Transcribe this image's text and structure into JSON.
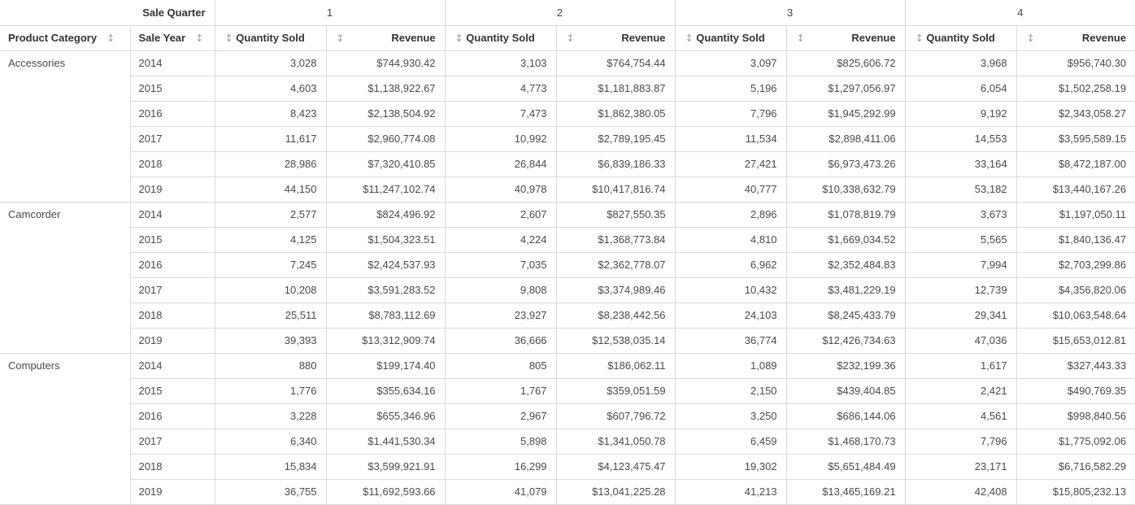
{
  "pivot_table": {
    "corner_label": "Sale Quarter",
    "row_dimension_labels": {
      "category": "Product Category",
      "year": "Sale Year"
    },
    "quarters": [
      "1",
      "2",
      "3",
      "4"
    ],
    "measures": {
      "quantity": "Quantity Sold",
      "revenue": "Revenue"
    },
    "sort_icon_glyph": "↕",
    "groups": [
      {
        "category": "Accessories",
        "rows": [
          {
            "year": "2014",
            "values": [
              "3,028",
              "$744,930.42",
              "3,103",
              "$764,754.44",
              "3,097",
              "$825,606.72",
              "3,968",
              "$956,740.30"
            ]
          },
          {
            "year": "2015",
            "values": [
              "4,603",
              "$1,138,922.67",
              "4,773",
              "$1,181,883.87",
              "5,196",
              "$1,297,056.97",
              "6,054",
              "$1,502,258.19"
            ]
          },
          {
            "year": "2016",
            "values": [
              "8,423",
              "$2,138,504.92",
              "7,473",
              "$1,862,380.05",
              "7,796",
              "$1,945,292.99",
              "9,192",
              "$2,343,058.27"
            ]
          },
          {
            "year": "2017",
            "values": [
              "11,617",
              "$2,960,774.08",
              "10,992",
              "$2,789,195.45",
              "11,534",
              "$2,898,411.06",
              "14,553",
              "$3,595,589.15"
            ]
          },
          {
            "year": "2018",
            "values": [
              "28,986",
              "$7,320,410.85",
              "26,844",
              "$6,839,186.33",
              "27,421",
              "$6,973,473.26",
              "33,164",
              "$8,472,187.00"
            ]
          },
          {
            "year": "2019",
            "values": [
              "44,150",
              "$11,247,102.74",
              "40,978",
              "$10,417,816.74",
              "40,777",
              "$10,338,632.79",
              "53,182",
              "$13,440,167.26"
            ]
          }
        ]
      },
      {
        "category": "Camcorder",
        "rows": [
          {
            "year": "2014",
            "values": [
              "2,577",
              "$824,496.92",
              "2,607",
              "$827,550.35",
              "2,896",
              "$1,078,819.79",
              "3,673",
              "$1,197,050.11"
            ]
          },
          {
            "year": "2015",
            "values": [
              "4,125",
              "$1,504,323.51",
              "4,224",
              "$1,368,773.84",
              "4,810",
              "$1,669,034.52",
              "5,565",
              "$1,840,136.47"
            ]
          },
          {
            "year": "2016",
            "values": [
              "7,245",
              "$2,424,537.93",
              "7,035",
              "$2,362,778.07",
              "6,962",
              "$2,352,484.83",
              "7,994",
              "$2,703,299.86"
            ]
          },
          {
            "year": "2017",
            "values": [
              "10,208",
              "$3,591,283.52",
              "9,808",
              "$3,374,989.46",
              "10,432",
              "$3,481,229.19",
              "12,739",
              "$4,356,820.06"
            ]
          },
          {
            "year": "2018",
            "values": [
              "25,511",
              "$8,783,112.69",
              "23,927",
              "$8,238,442.56",
              "24,103",
              "$8,245,433.79",
              "29,341",
              "$10,063,548.64"
            ]
          },
          {
            "year": "2019",
            "values": [
              "39,393",
              "$13,312,909.74",
              "36,666",
              "$12,538,035.14",
              "36,774",
              "$12,426,734.63",
              "47,036",
              "$15,653,012.81"
            ]
          }
        ]
      },
      {
        "category": "Computers",
        "rows": [
          {
            "year": "2014",
            "values": [
              "880",
              "$199,174.40",
              "805",
              "$186,062.11",
              "1,089",
              "$232,199.36",
              "1,617",
              "$327,443.33"
            ]
          },
          {
            "year": "2015",
            "values": [
              "1,776",
              "$355,634.16",
              "1,767",
              "$359,051.59",
              "2,150",
              "$439,404.85",
              "2,421",
              "$490,769.35"
            ]
          },
          {
            "year": "2016",
            "values": [
              "3,228",
              "$655,346.96",
              "2,967",
              "$607,796.72",
              "3,250",
              "$686,144.06",
              "4,561",
              "$998,840.56"
            ]
          },
          {
            "year": "2017",
            "values": [
              "6,340",
              "$1,441,530.34",
              "5,898",
              "$1,341,050.78",
              "6,459",
              "$1,468,170.73",
              "7,796",
              "$1,775,092.06"
            ]
          },
          {
            "year": "2018",
            "values": [
              "15,834",
              "$3,599,921.91",
              "16,299",
              "$4,123,475.47",
              "19,302",
              "$5,651,484.49",
              "23,171",
              "$6,716,582.29"
            ]
          },
          {
            "year": "2019",
            "values": [
              "36,755",
              "$11,692,593.66",
              "41,079",
              "$13,041,225.28",
              "41,213",
              "$13,465,169.21",
              "42,408",
              "$15,805,232.13"
            ]
          }
        ]
      }
    ]
  },
  "colors": {
    "border": "#d9d9d9",
    "header_text": "#333333",
    "cell_text": "#4a4a4a",
    "sort_icon": "#9e9e9e",
    "background": "#ffffff"
  }
}
